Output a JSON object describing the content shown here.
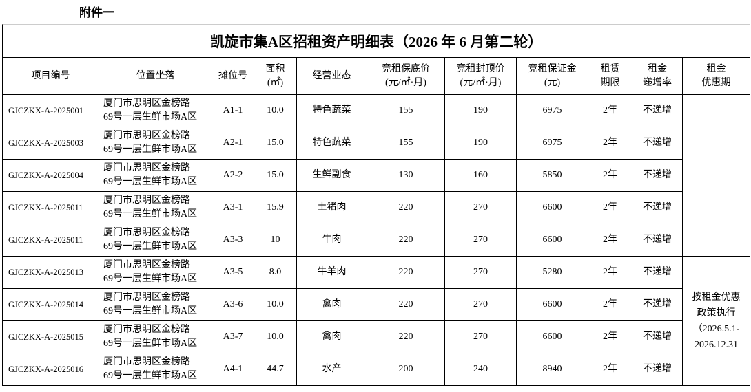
{
  "header": {
    "label": "附件一",
    "title": "凯旋市集A区招租资产明细表（2026 年 6 月第二轮）"
  },
  "table": {
    "columns": [
      [
        "项目编号"
      ],
      [
        "位置坐落"
      ],
      [
        "摊位号"
      ],
      [
        "面积",
        "(㎡)"
      ],
      [
        "经营业态"
      ],
      [
        "竞租保底价",
        "(元/㎡·月)"
      ],
      [
        "竞租封顶价",
        "(元/㎡·月)"
      ],
      [
        "竞租保证金",
        "(元)"
      ],
      [
        "租赁",
        "期限"
      ],
      [
        "租金",
        "递增率"
      ],
      [
        "租金",
        "优惠期"
      ]
    ],
    "rows": [
      [
        "GJCZKX-A-2025001",
        [
          "厦门市思明区金榜路",
          "69号一层生鲜市场A区"
        ],
        "A1-1",
        "10.0",
        "特色蔬菜",
        "155",
        "190",
        "6975",
        "2年",
        "不递增"
      ],
      [
        "GJCZKX-A-2025003",
        [
          "厦门市思明区金榜路",
          "69号一层生鲜市场A区"
        ],
        "A2-1",
        "15.0",
        "特色蔬菜",
        "155",
        "190",
        "6975",
        "2年",
        "不递增"
      ],
      [
        "GJCZKX-A-2025004",
        [
          "厦门市思明区金榜路",
          "69号一层生鲜市场A区"
        ],
        "A2-2",
        "15.0",
        "生鲜副食",
        "130",
        "160",
        "5850",
        "2年",
        "不递增"
      ],
      [
        "GJCZKX-A-2025011",
        [
          "厦门市思明区金榜路",
          "69号一层生鲜市场A区"
        ],
        "A3-1",
        "15.9",
        "土猪肉",
        "220",
        "270",
        "6600",
        "2年",
        "不递增"
      ],
      [
        "GJCZKX-A-2025011",
        [
          "厦门市思明区金榜路",
          "69号一层生鲜市场A区"
        ],
        "A3-3",
        "10",
        "牛肉",
        "220",
        "270",
        "6600",
        "2年",
        "不递增"
      ],
      [
        "GJCZKX-A-2025013",
        [
          "厦门市思明区金榜路",
          "69号一层生鲜市场A区"
        ],
        "A3-5",
        "8.0",
        "牛羊肉",
        "220",
        "270",
        "5280",
        "2年",
        "不递增"
      ],
      [
        "GJCZKX-A-2025014",
        [
          "厦门市思明区金榜路",
          "69号一层生鲜市场A区"
        ],
        "A3-6",
        "10.0",
        "禽肉",
        "220",
        "270",
        "6600",
        "2年",
        "不递增"
      ],
      [
        "GJCZKX-A-2025015",
        [
          "厦门市思明区金榜路",
          "69号一层生鲜市场A区"
        ],
        "A3-7",
        "10.0",
        "禽肉",
        "220",
        "270",
        "6600",
        "2年",
        "不递增"
      ],
      [
        "GJCZKX-A-2025016",
        [
          "厦门市思明区金榜路",
          "69号一层生鲜市场A区"
        ],
        "A4-1",
        "44.7",
        "水产",
        "200",
        "240",
        "8940",
        "2年",
        "不递增"
      ]
    ],
    "note": "按租金优惠政策执行（2026.5.1-2026.12.31"
  }
}
